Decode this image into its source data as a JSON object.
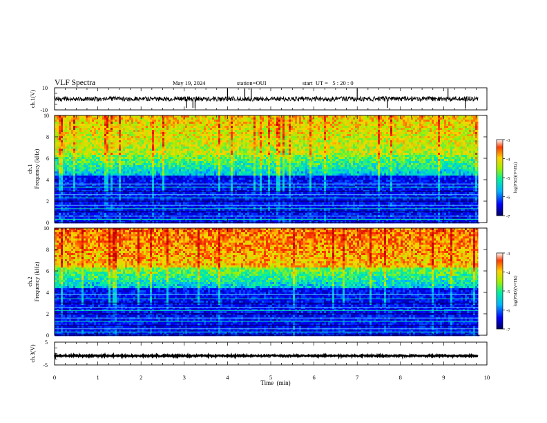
{
  "header": {
    "title": "VLF Spectra",
    "date": "May 19, 2024",
    "station": "station=OUI",
    "start": "start  UT =   5 : 20 : 0"
  },
  "chart_data": [
    {
      "type": "line",
      "panel": "ch1-waveform",
      "ylabel": "ch.1(V)",
      "ylim": [
        -10,
        10
      ],
      "ytick_labels": [
        "10",
        "-10"
      ],
      "x_range_min": [
        0,
        9.8
      ],
      "baseline_v": 0,
      "spikes_min": [
        3.05,
        3.2,
        3.25,
        4.0,
        4.4,
        4.55,
        7.0,
        7.7,
        9.1,
        9.5
      ]
    },
    {
      "type": "heatmap",
      "panel": "ch1-spectrogram",
      "ylabel": "ch.1\nFrequency (kHz)",
      "ylabel_lines": [
        "ch.1",
        "Frequency (kHz)"
      ],
      "ylim_khz": [
        0,
        10
      ],
      "yticks": [
        0,
        2,
        4,
        6,
        8,
        10
      ],
      "x_range_min": [
        0,
        9.8
      ],
      "colorbar": {
        "label": "log(PSD)(V²/Hz)",
        "ticks": [
          -3,
          -4,
          -5,
          -6,
          -7
        ]
      },
      "narrowband_lines_khz": [
        0.3,
        0.6,
        1.0,
        1.3,
        1.6,
        2.0,
        2.3,
        2.6,
        2.9,
        3.3,
        3.6
      ]
    },
    {
      "type": "heatmap",
      "panel": "ch2-spectrogram",
      "ylabel": "ch.2\nFrequency (kHz)",
      "ylabel_lines": [
        "ch.2",
        "Frequency (kHz)"
      ],
      "ylim_khz": [
        0,
        10
      ],
      "yticks": [
        0,
        2,
        4,
        6,
        8,
        10
      ],
      "x_range_min": [
        0,
        9.8
      ],
      "colorbar": {
        "label": "log(PSD)(V²/Hz)",
        "ticks": [
          -3,
          -4,
          -5,
          -6,
          -7
        ]
      },
      "narrowband_lines_khz": [
        0.3,
        0.6,
        0.9,
        1.3,
        1.6,
        2.0,
        2.3,
        2.6,
        3.0,
        3.4,
        3.8
      ]
    },
    {
      "type": "line",
      "panel": "ch3-waveform",
      "ylabel": "ch.3(V)",
      "ylim": [
        -5,
        5
      ],
      "ytick_labels": [
        "5",
        "-5"
      ],
      "x_range_min": [
        0,
        9.8
      ],
      "baseline_v": -1
    }
  ],
  "xaxis": {
    "label": "Time  (min)",
    "ticks": [
      0,
      1,
      2,
      3,
      4,
      5,
      6,
      7,
      8,
      9,
      10
    ],
    "range": [
      0,
      10
    ]
  },
  "colors": {
    "frame": "#000000",
    "waveform": "#000000",
    "colormap": [
      "#0000c8",
      "#1e5aff",
      "#00c8ff",
      "#00e678",
      "#b4f000",
      "#ffdc00",
      "#ff6400",
      "#c80000"
    ]
  }
}
